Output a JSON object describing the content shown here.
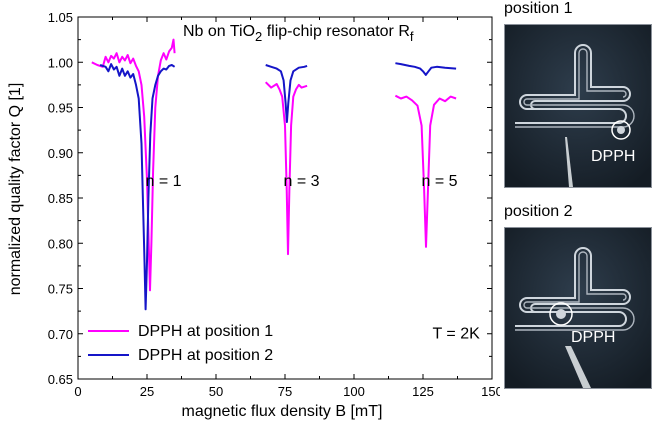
{
  "chart_data": {
    "type": "line",
    "title_main": "Nb on TiO",
    "title_sub": "2",
    "title_rest": " flip-chip resonator R",
    "title_tail_sub": "f",
    "xlabel": "magnetic flux density B [mT]",
    "ylabel": "normalized quality factor Q [1]",
    "xlim": [
      0,
      150
    ],
    "ylim": [
      0.65,
      1.05
    ],
    "xticks": [
      "0",
      "25",
      "50",
      "75",
      "100",
      "125",
      "150"
    ],
    "yticks": [
      "0.65",
      "0.70",
      "0.75",
      "0.80",
      "0.85",
      "0.90",
      "0.95",
      "1.00",
      "1.05"
    ],
    "annotations": [
      {
        "text": "n = 1",
        "x": 31,
        "y": 0.863
      },
      {
        "text": "n = 3",
        "x": 81,
        "y": 0.863
      },
      {
        "text": "n = 5",
        "x": 131,
        "y": 0.863
      },
      {
        "text": "T = 2K",
        "x": 137,
        "y": 0.695
      }
    ],
    "series": [
      {
        "name": "DPPH at position 1",
        "color": "#ff00ff",
        "segments": [
          [
            [
              5,
              1.0
            ],
            [
              7,
              0.997
            ],
            [
              9,
              0.995
            ],
            [
              10,
              1.006
            ],
            [
              11,
              1.0
            ],
            [
              12,
              1.007
            ],
            [
              13,
              1.004
            ],
            [
              14,
              1.01
            ],
            [
              15,
              1.0
            ],
            [
              16,
              1.006
            ],
            [
              17,
              1.002
            ],
            [
              18,
              1.008
            ],
            [
              19,
              0.999
            ],
            [
              20,
              1.004
            ],
            [
              21,
              0.996
            ],
            [
              22,
              0.99
            ],
            [
              23,
              0.975
            ],
            [
              24,
              0.94
            ],
            [
              25,
              0.87
            ],
            [
              25.6,
              0.8
            ],
            [
              26.1,
              0.748
            ],
            [
              26.6,
              0.8
            ],
            [
              27.2,
              0.88
            ],
            [
              28,
              0.95
            ],
            [
              29,
              0.985
            ],
            [
              30,
              1.002
            ],
            [
              31,
              1.01
            ],
            [
              32,
              1.003
            ],
            [
              33,
              1.012
            ],
            [
              34,
              1.016
            ],
            [
              34.6,
              1.025
            ],
            [
              35,
              1.01
            ]
          ],
          [
            [
              68,
              0.978
            ],
            [
              70,
              0.972
            ],
            [
              72,
              0.976
            ],
            [
              73,
              0.97
            ],
            [
              74,
              0.962
            ],
            [
              75,
              0.93
            ],
            [
              75.6,
              0.86
            ],
            [
              76.1,
              0.788
            ],
            [
              76.6,
              0.86
            ],
            [
              77.2,
              0.93
            ],
            [
              78,
              0.962
            ],
            [
              79,
              0.97
            ],
            [
              80,
              0.975
            ],
            [
              81,
              0.972
            ],
            [
              83,
              0.974
            ]
          ],
          [
            [
              115,
              0.963
            ],
            [
              117,
              0.96
            ],
            [
              119,
              0.962
            ],
            [
              121,
              0.958
            ],
            [
              123,
              0.952
            ],
            [
              124.5,
              0.93
            ],
            [
              125.4,
              0.86
            ],
            [
              126.1,
              0.796
            ],
            [
              126.8,
              0.86
            ],
            [
              127.6,
              0.93
            ],
            [
              129,
              0.953
            ],
            [
              131,
              0.96
            ],
            [
              133,
              0.957
            ],
            [
              135,
              0.962
            ],
            [
              137,
              0.96
            ]
          ]
        ]
      },
      {
        "name": "DPPH at position 2",
        "color": "#1515c8",
        "segments": [
          [
            [
              8,
              0.997
            ],
            [
              10,
              0.995
            ],
            [
              11,
              0.99
            ],
            [
              12,
              0.998
            ],
            [
              13,
              0.992
            ],
            [
              14,
              0.995
            ],
            [
              15,
              0.985
            ],
            [
              16,
              0.993
            ],
            [
              17,
              0.985
            ],
            [
              18,
              0.99
            ],
            [
              19,
              0.983
            ],
            [
              20,
              0.987
            ],
            [
              21,
              0.975
            ],
            [
              22,
              0.96
            ],
            [
              23,
              0.91
            ],
            [
              23.6,
              0.84
            ],
            [
              24.1,
              0.78
            ],
            [
              24.5,
              0.727
            ],
            [
              25,
              0.78
            ],
            [
              25.5,
              0.85
            ],
            [
              26.2,
              0.92
            ],
            [
              27,
              0.96
            ],
            [
              28,
              0.975
            ],
            [
              29,
              0.985
            ],
            [
              30,
              0.99
            ],
            [
              31,
              0.993
            ],
            [
              32,
              0.992
            ],
            [
              33,
              0.996
            ],
            [
              34,
              0.997
            ],
            [
              35,
              0.995
            ]
          ],
          [
            [
              68,
              0.997
            ],
            [
              70,
              0.995
            ],
            [
              72,
              0.993
            ],
            [
              73.5,
              0.99
            ],
            [
              74.5,
              0.98
            ],
            [
              75.2,
              0.955
            ],
            [
              75.7,
              0.934
            ],
            [
              76.2,
              0.955
            ],
            [
              77,
              0.98
            ],
            [
              78,
              0.99
            ],
            [
              80,
              0.994
            ],
            [
              82,
              0.995
            ],
            [
              83,
              0.996
            ]
          ],
          [
            [
              115,
              0.999
            ],
            [
              117,
              0.998
            ],
            [
              120,
              0.996
            ],
            [
              122,
              0.995
            ],
            [
              124,
              0.993
            ],
            [
              125,
              0.99
            ],
            [
              126,
              0.986
            ],
            [
              127,
              0.99
            ],
            [
              128,
              0.994
            ],
            [
              130,
              0.995
            ],
            [
              133,
              0.994
            ],
            [
              137,
              0.993
            ]
          ]
        ]
      }
    ],
    "legend_placement": "bottom-left"
  },
  "photos": {
    "position1_label": "position 1",
    "position2_label": "position 2",
    "dpph_label": "DPPH"
  }
}
